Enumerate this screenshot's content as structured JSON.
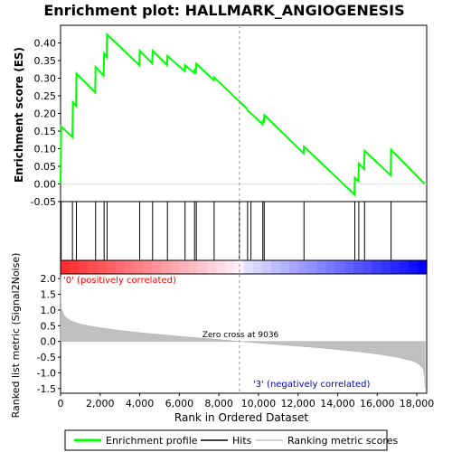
{
  "chart_data": {
    "type": "line",
    "title": "Enrichment plot: HALLMARK_ANGIOGENESIS",
    "xlabel": "Rank in Ordered Dataset",
    "es_panel": {
      "ylabel": "Enrichment score (ES)",
      "xlim": [
        0,
        18500
      ],
      "ylim": [
        -0.05,
        0.45
      ],
      "yticks": [
        "-0.05",
        "0.00",
        "0.05",
        "0.10",
        "0.15",
        "0.20",
        "0.25",
        "0.30",
        "0.35",
        "0.40"
      ],
      "ytick_values": [
        -0.05,
        0.0,
        0.05,
        0.1,
        0.15,
        0.2,
        0.25,
        0.3,
        0.35,
        0.4
      ],
      "color": "#00ff00",
      "points": [
        [
          0,
          0.0
        ],
        [
          30,
          0.163
        ],
        [
          600,
          0.133
        ],
        [
          620,
          0.232
        ],
        [
          780,
          0.222
        ],
        [
          800,
          0.313
        ],
        [
          1750,
          0.26
        ],
        [
          1770,
          0.332
        ],
        [
          2180,
          0.307
        ],
        [
          2200,
          0.37
        ],
        [
          2330,
          0.36
        ],
        [
          2350,
          0.424
        ],
        [
          3980,
          0.337
        ],
        [
          4000,
          0.378
        ],
        [
          4630,
          0.342
        ],
        [
          4650,
          0.378
        ],
        [
          5380,
          0.337
        ],
        [
          5400,
          0.363
        ],
        [
          6270,
          0.32
        ],
        [
          6290,
          0.337
        ],
        [
          6750,
          0.315
        ],
        [
          6770,
          0.323
        ],
        [
          6840,
          0.317
        ],
        [
          6860,
          0.341
        ],
        [
          7730,
          0.295
        ],
        [
          7760,
          0.302
        ],
        [
          9430,
          0.213
        ],
        [
          9450,
          0.208
        ],
        [
          9620,
          0.2
        ],
        [
          10200,
          0.17
        ],
        [
          10220,
          0.178
        ],
        [
          10270,
          0.176
        ],
        [
          10290,
          0.196
        ],
        [
          12280,
          0.087
        ],
        [
          12300,
          0.106
        ],
        [
          14850,
          -0.03
        ],
        [
          14870,
          0.018
        ],
        [
          15050,
          0.008
        ],
        [
          15070,
          0.058
        ],
        [
          15340,
          0.042
        ],
        [
          15360,
          0.094
        ],
        [
          16680,
          0.025
        ],
        [
          16700,
          0.097
        ],
        [
          18400,
          0.0
        ]
      ]
    },
    "hits_panel": {
      "hit_ranks": [
        30,
        600,
        800,
        1770,
        2200,
        2350,
        4000,
        4650,
        5400,
        6290,
        6770,
        6860,
        7760,
        9036,
        9450,
        9620,
        10220,
        10290,
        12300,
        14870,
        15070,
        15360,
        16700
      ]
    },
    "metric_panel": {
      "ylabel": "Ranked list metric (Signal2Noise)",
      "ylim": [
        -1.65,
        2.15
      ],
      "yticks": [
        "-1.5",
        "-1.0",
        "-0.5",
        "0.0",
        "0.5",
        "1.0",
        "1.5",
        "2.0"
      ],
      "ytick_values": [
        -1.5,
        -1.0,
        -0.5,
        0.0,
        0.5,
        1.0,
        1.5,
        2.0
      ],
      "xticks": [
        "0",
        "2,000",
        "4,000",
        "6,000",
        "8,000",
        "10,000",
        "12,000",
        "14,000",
        "16,000",
        "18,000"
      ],
      "xtick_values": [
        0,
        2000,
        4000,
        6000,
        8000,
        10000,
        12000,
        14000,
        16000,
        18000
      ],
      "zero_cross_label": "Zero cross at 9036",
      "zero_cross": 9036,
      "pos_label": "'0' (positively correlated)",
      "neg_label": "'3' (negatively correlated)",
      "pos_color": "#ff0000",
      "neg_color": "#0000ff",
      "curve": [
        [
          0,
          2.05
        ],
        [
          30,
          1.05
        ],
        [
          200,
          0.8
        ],
        [
          500,
          0.66
        ],
        [
          1000,
          0.55
        ],
        [
          2000,
          0.43
        ],
        [
          3000,
          0.35
        ],
        [
          4000,
          0.28
        ],
        [
          5000,
          0.22
        ],
        [
          6000,
          0.16
        ],
        [
          7000,
          0.11
        ],
        [
          8000,
          0.06
        ],
        [
          9036,
          0.0
        ],
        [
          10000,
          -0.05
        ],
        [
          11000,
          -0.1
        ],
        [
          12000,
          -0.15
        ],
        [
          13000,
          -0.2
        ],
        [
          14000,
          -0.26
        ],
        [
          15000,
          -0.32
        ],
        [
          16000,
          -0.4
        ],
        [
          17000,
          -0.5
        ],
        [
          17800,
          -0.62
        ],
        [
          18100,
          -0.72
        ],
        [
          18300,
          -0.85
        ],
        [
          18380,
          -1.05
        ],
        [
          18420,
          -1.5
        ]
      ]
    },
    "legend": [
      {
        "label": "Enrichment profile",
        "color": "#00ff00"
      },
      {
        "label": "Hits",
        "color": "#000000"
      },
      {
        "label": "Ranking metric scores",
        "color": "#c0c0c0"
      }
    ]
  }
}
